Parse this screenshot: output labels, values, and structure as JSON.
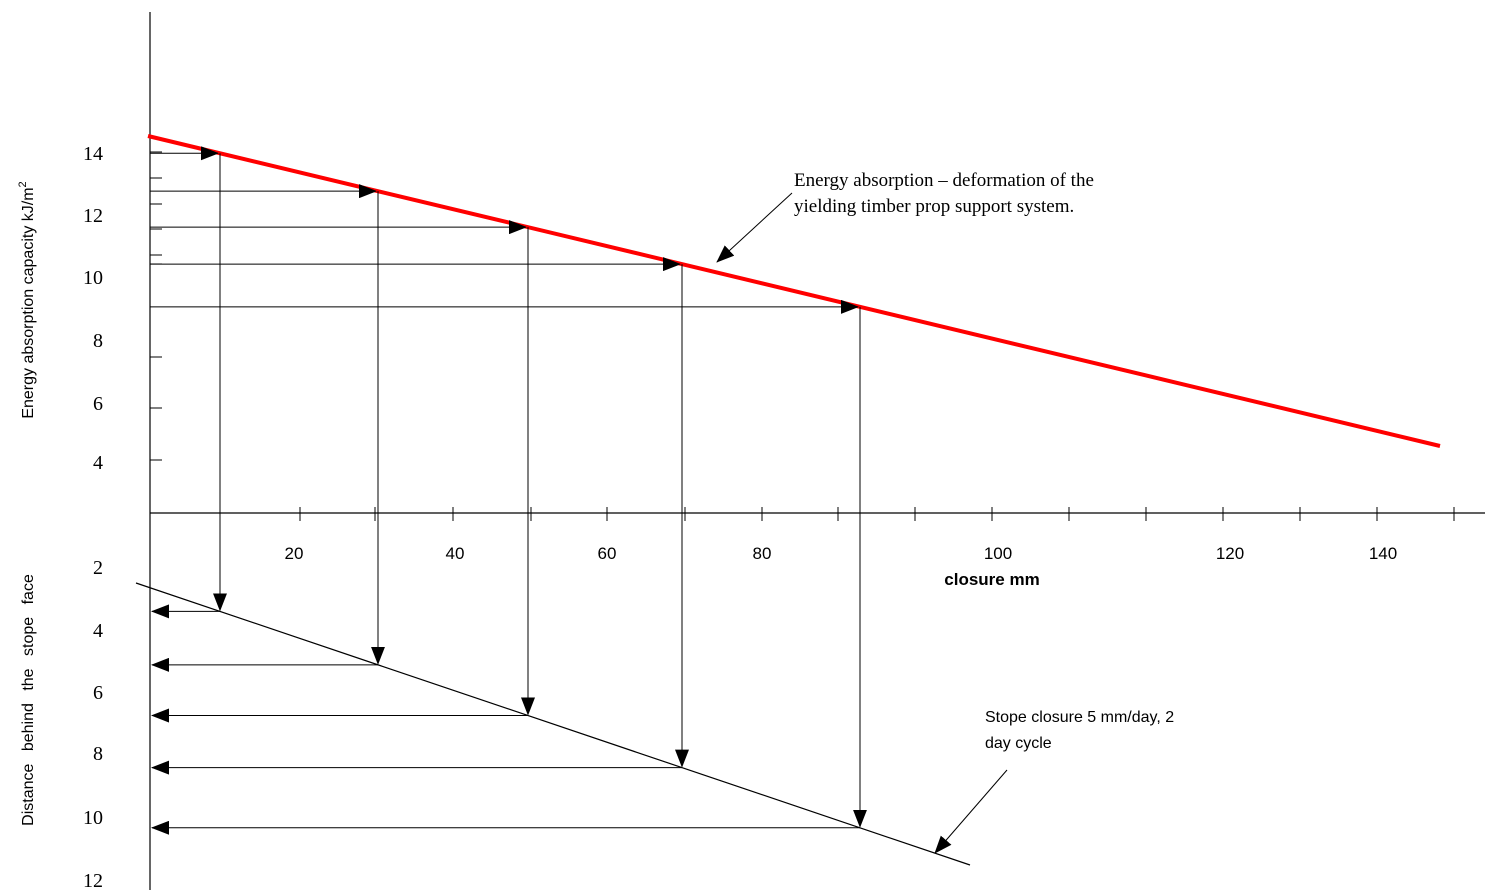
{
  "chart_data": {
    "type": "line",
    "xlabel": "closure mm",
    "ylabel_top": "Energy absorption capacity kJ/m",
    "ylabel_top_superscript": "2",
    "ylabel_bottom": "Distance behind the stope face",
    "x_ticks": [
      20,
      40,
      60,
      80,
      100,
      120,
      140
    ],
    "y_ticks_top": [
      14,
      12,
      10,
      8,
      6,
      4
    ],
    "y_ticks_bottom": [
      2,
      4,
      6,
      8,
      10,
      12
    ],
    "series": [
      {
        "name": "Energy absorption – deformation of the yielding timber prop support system.",
        "color": "#ff0000",
        "x": [
          0,
          165
        ],
        "y": [
          14.6,
          4.0
        ]
      },
      {
        "name": "Stope closure 5 mm/day, 2 day cycle",
        "color": "#000000",
        "x": [
          0,
          105
        ],
        "y": [
          2.4,
          12.9
        ]
      }
    ],
    "construction_points": [
      {
        "closure": 10,
        "energy": 14,
        "distance": 3.5
      },
      {
        "closure": 30,
        "energy": 12.8,
        "distance": 5.1
      },
      {
        "closure": 50,
        "energy": 11.5,
        "distance": 6.8
      },
      {
        "closure": 70,
        "energy": 10.3,
        "distance": 8.5
      },
      {
        "closure": 92,
        "energy": 9.0,
        "distance": 10.4
      }
    ],
    "annotations": {
      "red_line_line1": "Energy absorption – deformation of the",
      "red_line_line2": "yielding timber prop support system.",
      "black_line_line1": "Stope  closure 5    mm/day,  2",
      "black_line_line2": "day cycle"
    },
    "grid": false
  }
}
